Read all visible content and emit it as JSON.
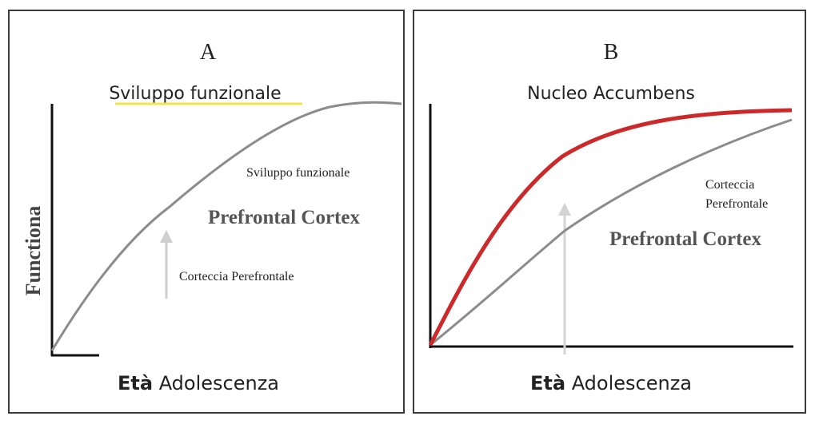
{
  "panel_a": {
    "letter": "A",
    "title": "Sviluppo funzionale",
    "y_axis_label": "Functiona",
    "curve_label": "Sviluppo funzionale",
    "region_label": "Prefrontal Cortex",
    "arrow_label": "Corteccia Perefrontale",
    "x_label_bold": "Età",
    "x_label_rest": "Adolescenza"
  },
  "panel_b": {
    "letter": "B",
    "title": "Nucleo Accumbens",
    "gray_label_line1": "Corteccia",
    "gray_label_line2": "Perefrontale",
    "region_label": "Prefrontal Cortex",
    "x_label_bold": "Età",
    "x_label_rest": "Adolescenza"
  },
  "colors": {
    "red_curve": "#cc2a2a",
    "gray_curve": "#8c8c8c",
    "arrow": "#cfcfcf",
    "title_highlight": "#f2e44a"
  }
}
